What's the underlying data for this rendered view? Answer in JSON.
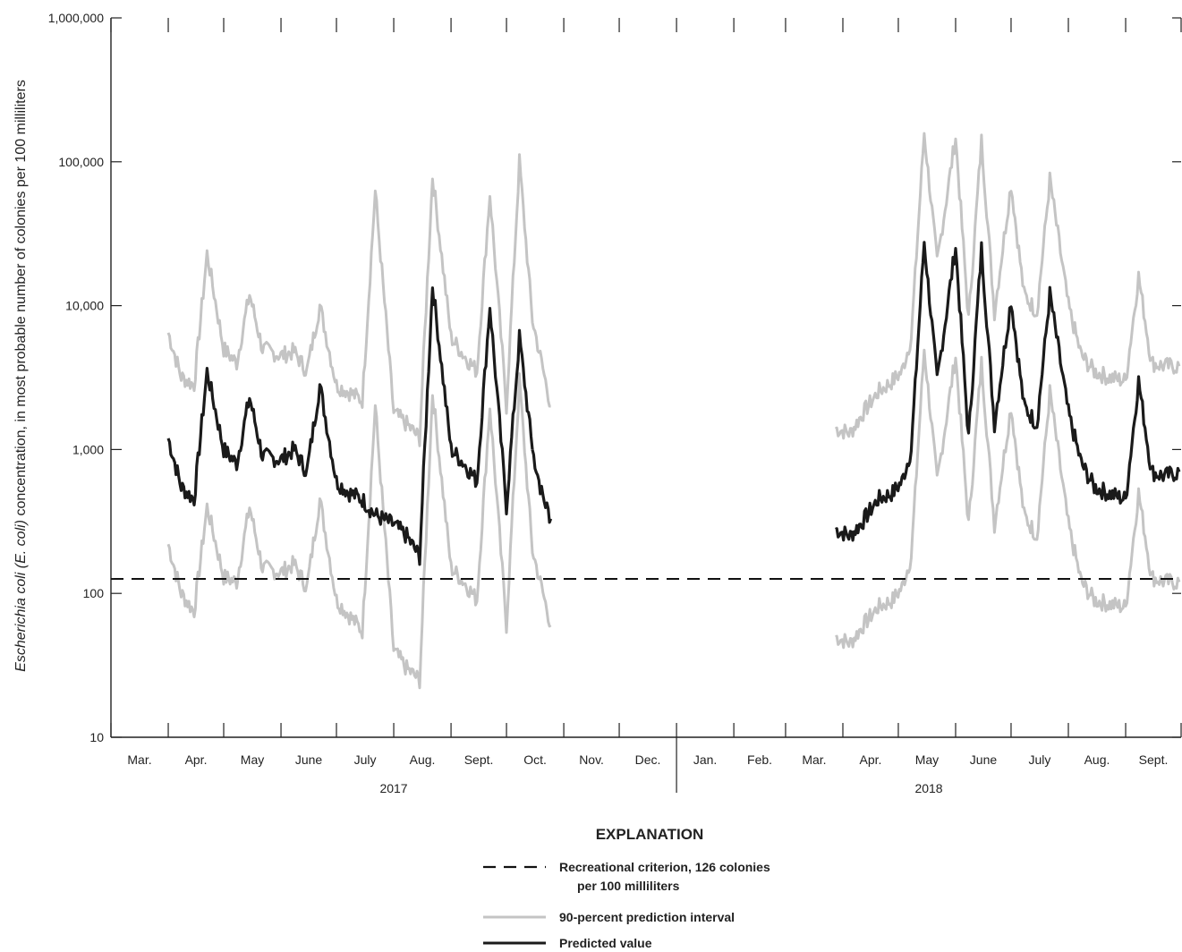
{
  "chart_data": {
    "type": "line",
    "ylabel_italic": "Escherichia coli (E. coli)",
    "ylabel_rest": " concentration, in most probable number of colonies per 100 milliliters",
    "y_scale": "log",
    "ylim": [
      10,
      1000000
    ],
    "y_ticks": [
      10,
      100,
      1000,
      10000,
      100000,
      1000000
    ],
    "y_tick_labels": [
      "10",
      "100",
      "1,000",
      "10,000",
      "100,000",
      "1,000,000"
    ],
    "month_labels": [
      "Mar.",
      "Apr.",
      "May",
      "June",
      "July",
      "Aug.",
      "Sept.",
      "Oct.",
      "Nov.",
      "Dec.",
      "Jan.",
      "Feb.",
      "Mar.",
      "Apr.",
      "May",
      "June",
      "July",
      "Aug.",
      "Sept."
    ],
    "year_labels": [
      "2017",
      "2018"
    ],
    "grid": false,
    "reference_line": {
      "name": "Recreational criterion, 126 colonies per 100 milliliters",
      "value": 126
    },
    "x_dates": [
      "2017-04-01",
      "2017-04-15",
      "2017-05-01",
      "2017-05-15",
      "2017-06-01",
      "2017-06-15",
      "2017-07-01",
      "2017-07-15",
      "2017-08-01",
      "2017-08-15",
      "2017-09-01",
      "2017-09-15",
      "2017-10-01",
      "2017-10-15",
      "2018-04-01",
      "2018-04-15",
      "2018-05-01",
      "2018-05-15",
      "2018-06-01",
      "2018-06-15",
      "2018-07-01",
      "2018-07-15",
      "2018-08-01",
      "2018-08-15",
      "2018-09-01",
      "2018-09-15"
    ],
    "series": [
      {
        "name": "Predicted value",
        "style": "black",
        "segments": [
          {
            "x": [
              "2017-04-01",
              "2017-04-08",
              "2017-04-15",
              "2017-04-22",
              "2017-05-01",
              "2017-05-08",
              "2017-05-15",
              "2017-05-22",
              "2017-06-01",
              "2017-06-08",
              "2017-06-15",
              "2017-06-22",
              "2017-07-01",
              "2017-07-08",
              "2017-07-15",
              "2017-07-22",
              "2017-08-01",
              "2017-08-08",
              "2017-08-15",
              "2017-08-22",
              "2017-09-01",
              "2017-09-08",
              "2017-09-15",
              "2017-09-22",
              "2017-10-01",
              "2017-10-08",
              "2017-10-15"
            ],
            "y": [
              1200,
              550,
              450,
              3500,
              1000,
              800,
              2300,
              900,
              850,
              1000,
              700,
              2800,
              600,
              500,
              450,
              350,
              300,
              250,
              180,
              14000,
              1000,
              800,
              600,
              10000,
              400,
              6000,
              1000
            ]
          },
          {
            "x": [
              "2017-10-15",
              "2017-10-20",
              "2017-10-25"
            ],
            "y": [
              1000,
              500,
              330
            ]
          },
          {
            "x": [
              "2018-03-28",
              "2018-04-05",
              "2018-04-12",
              "2018-04-20",
              "2018-04-28",
              "2018-05-03",
              "2018-05-08",
              "2018-05-15",
              "2018-05-22",
              "2018-06-01",
              "2018-06-08",
              "2018-06-15",
              "2018-06-22",
              "2018-07-01",
              "2018-07-08",
              "2018-07-15",
              "2018-07-22",
              "2018-08-01",
              "2018-08-08",
              "2018-08-15",
              "2018-08-22",
              "2018-09-01",
              "2018-09-08",
              "2018-09-15",
              "2018-09-22",
              "2018-09-30"
            ],
            "y": [
              280,
              250,
              320,
              450,
              500,
              600,
              1000,
              28000,
              3000,
              26000,
              1200,
              25000,
              1500,
              11000,
              2000,
              1500,
              12000,
              1800,
              800,
              550,
              500,
              450,
              3000,
              700,
              650,
              700
            ]
          }
        ]
      },
      {
        "name": "90-percent prediction interval",
        "style": "gray",
        "segments": [
          {
            "x": [
              "2017-04-01",
              "2017-04-08",
              "2017-04-15",
              "2017-04-22",
              "2017-05-01",
              "2017-05-08",
              "2017-05-15",
              "2017-05-22",
              "2017-06-01",
              "2017-06-08",
              "2017-06-15",
              "2017-06-22",
              "2017-07-01",
              "2017-07-08",
              "2017-07-15",
              "2017-07-22",
              "2017-08-01",
              "2017-08-08",
              "2017-08-15",
              "2017-08-22",
              "2017-09-01",
              "2017-09-08",
              "2017-09-15",
              "2017-09-22",
              "2017-10-01",
              "2017-10-08",
              "2017-10-15",
              "2017-10-25"
            ],
            "y": [
              6500,
              3200,
              2800,
              23000,
              5000,
              4000,
              12000,
              5000,
              4500,
              4800,
              3500,
              10000,
              2800,
              2500,
              2200,
              62000,
              1800,
              1500,
              1200,
              80000,
              6000,
              4500,
              3500,
              60000,
              2000,
              100000,
              8000,
              2000
            ]
          },
          {
            "x": [
              "2017-04-01",
              "2017-04-08",
              "2017-04-15",
              "2017-04-22",
              "2017-05-01",
              "2017-05-08",
              "2017-05-15",
              "2017-05-22",
              "2017-06-01",
              "2017-06-08",
              "2017-06-15",
              "2017-06-22",
              "2017-07-01",
              "2017-07-08",
              "2017-07-15",
              "2017-07-22",
              "2017-08-01",
              "2017-08-08",
              "2017-08-15",
              "2017-08-22",
              "2017-09-01",
              "2017-09-08",
              "2017-09-15",
              "2017-09-22",
              "2017-10-01",
              "2017-10-08",
              "2017-10-15",
              "2017-10-25"
            ],
            "y": [
              220,
              100,
              75,
              400,
              130,
              120,
              400,
              150,
              140,
              160,
              110,
              450,
              90,
              70,
              55,
              2000,
              40,
              30,
              25,
              2500,
              150,
              120,
              90,
              2000,
              60,
              3000,
              200,
              60
            ]
          },
          {
            "x": [
              "2018-03-28",
              "2018-04-05",
              "2018-04-12",
              "2018-04-20",
              "2018-04-28",
              "2018-05-03",
              "2018-05-08",
              "2018-05-15",
              "2018-05-22",
              "2018-06-01",
              "2018-06-08",
              "2018-06-15",
              "2018-06-22",
              "2018-07-01",
              "2018-07-08",
              "2018-07-15",
              "2018-07-22",
              "2018-08-01",
              "2018-08-08",
              "2018-08-15",
              "2018-08-22",
              "2018-09-01",
              "2018-09-08",
              "2018-09-15",
              "2018-09-22",
              "2018-09-30"
            ],
            "y": [
              1400,
              1300,
              1800,
              2500,
              3000,
              3500,
              6000,
              160000,
              20000,
              150000,
              8000,
              140000,
              9000,
              70000,
              12000,
              9000,
              75000,
              10000,
              4500,
              3500,
              3200,
              3000,
              16000,
              4000,
              3800,
              3800
            ]
          },
          {
            "x": [
              "2018-03-28",
              "2018-04-05",
              "2018-04-12",
              "2018-04-20",
              "2018-04-28",
              "2018-05-03",
              "2018-05-08",
              "2018-05-15",
              "2018-05-22",
              "2018-06-01",
              "2018-06-08",
              "2018-06-15",
              "2018-06-22",
              "2018-07-01",
              "2018-07-08",
              "2018-07-15",
              "2018-07-22",
              "2018-08-01",
              "2018-08-08",
              "2018-08-15",
              "2018-08-22",
              "2018-09-01",
              "2018-09-08",
              "2018-09-15",
              "2018-09-22",
              "2018-09-30"
            ],
            "y": [
              50,
              45,
              60,
              80,
              90,
              110,
              180,
              5000,
              600,
              4500,
              300,
              4000,
              300,
              2000,
              350,
              250,
              2500,
              300,
              120,
              90,
              85,
              80,
              500,
              130,
              120,
              120
            ]
          }
        ]
      }
    ],
    "legend": {
      "title": "EXPLANATION",
      "items": [
        {
          "line1": "Recreational criterion, 126 colonies",
          "line2": "per 100 milliliters",
          "style": "dashed"
        },
        {
          "line1": "90-percent prediction interval",
          "style": "gray"
        },
        {
          "line1": "Predicted value",
          "style": "black"
        }
      ]
    },
    "colors": {
      "predicted": "#1a1a1a",
      "interval": "#c4c4c4",
      "criterion": "#111111",
      "axis": "#222222"
    }
  }
}
